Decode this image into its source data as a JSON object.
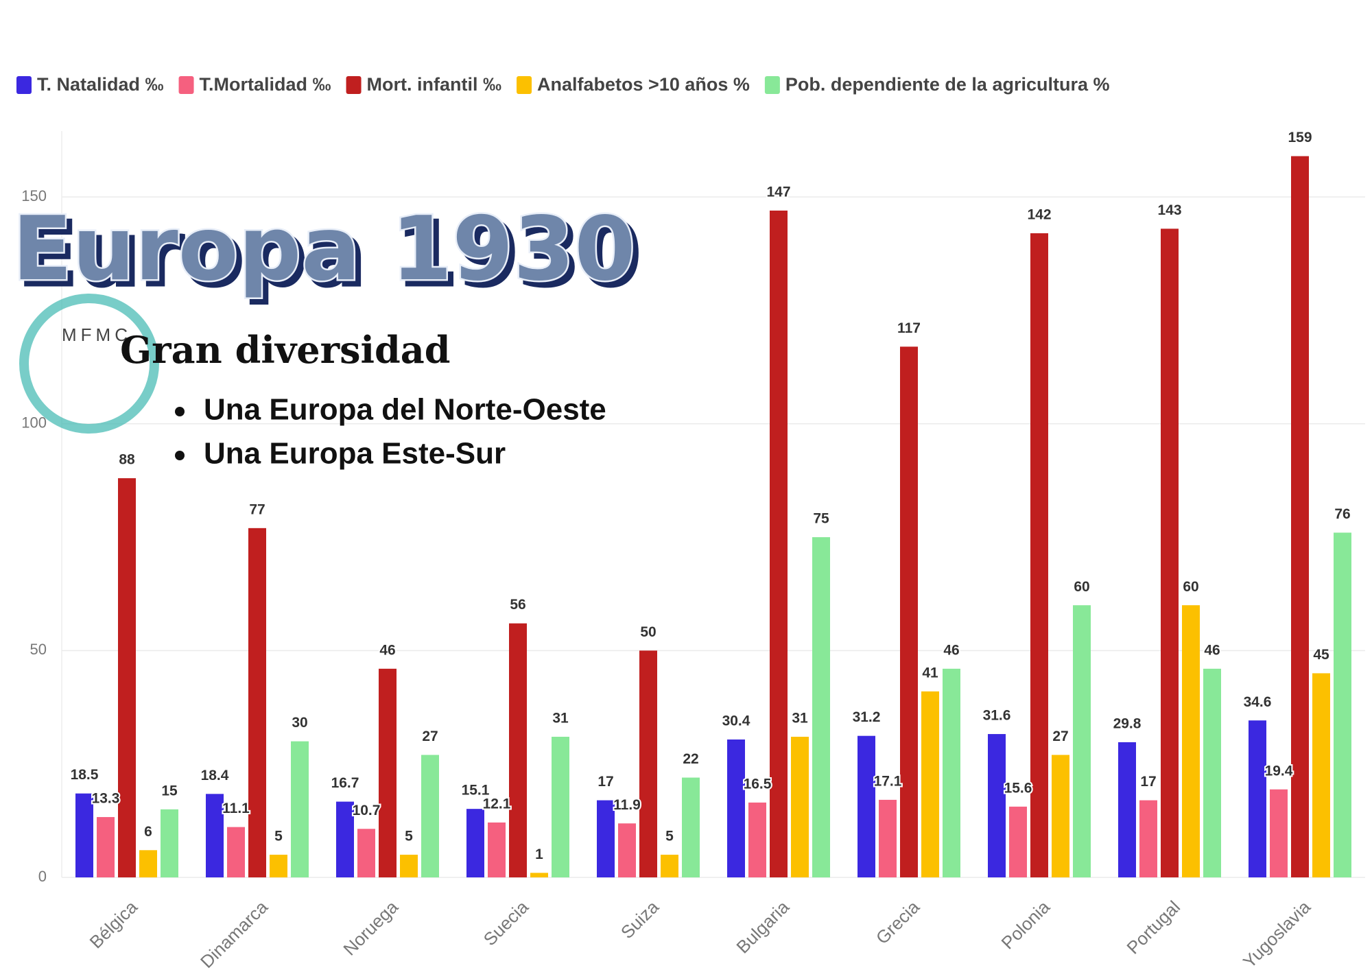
{
  "chart_data": {
    "type": "bar",
    "categories": [
      "Bélgica",
      "Dinamarca",
      "Noruega",
      "Suecia",
      "Suiza",
      "Bulgaria",
      "Grecia",
      "Polonia",
      "Portugal",
      "Yugoslavia"
    ],
    "series": [
      {
        "name": "T. Natalidad ‰",
        "color": "#3b28e0",
        "values": [
          18.5,
          18.4,
          16.7,
          15.1,
          17,
          30.4,
          31.2,
          31.6,
          29.8,
          34.6
        ]
      },
      {
        "name": "T.Mortalidad ‰",
        "color": "#f5607f",
        "values": [
          13.3,
          11.1,
          10.7,
          12.1,
          11.9,
          16.5,
          17.1,
          15.6,
          17,
          19.4
        ]
      },
      {
        "name": "Mort. infantil ‰",
        "color": "#c01f1f",
        "values": [
          88,
          77,
          46,
          56,
          50,
          147,
          117,
          142,
          143,
          159
        ]
      },
      {
        "name": "Analfabetos >10 años %",
        "color": "#fcc000",
        "values": [
          6,
          5,
          5,
          1,
          5,
          31,
          41,
          27,
          60,
          45
        ]
      },
      {
        "name": "Pob. dependiente de la agricultura %",
        "color": "#88e898",
        "values": [
          15,
          30,
          27,
          31,
          22,
          75,
          46,
          60,
          46,
          76
        ]
      }
    ],
    "ylim": [
      0,
      160
    ],
    "yticks": [
      0,
      50,
      100,
      150
    ],
    "grid": true,
    "legend": "top-left",
    "annotations": {
      "title": "Europa 1930",
      "logo": "MFMC",
      "subtitle": "Gran diversidad",
      "bullets": [
        "Una Europa del Norte-Oeste",
        "Una Europa Este-Sur"
      ]
    }
  }
}
